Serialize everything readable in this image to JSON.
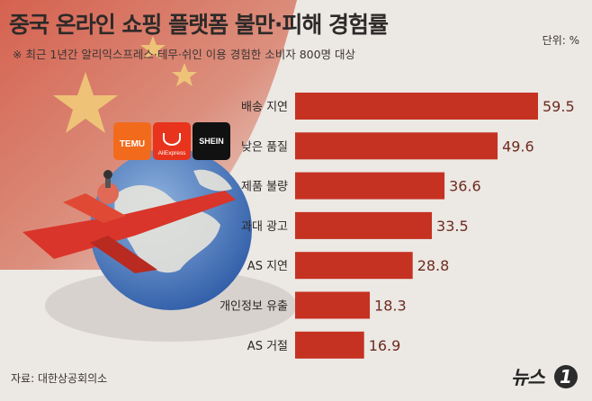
{
  "header": {
    "title": "중국 온라인 쇼핑 플랫폼 불만·피해 경험률",
    "subtitle": "※ 최근 1년간 알리익스프레스·테무·쉬인 이용 경험한 소비자 800명 대상",
    "unit": "단위: %"
  },
  "footer": {
    "source": "자료: 대한상공회의소",
    "brand": "뉴스",
    "brand_mark": "1"
  },
  "logos": {
    "temu": "TEMU",
    "aliexpress": "AliExpress",
    "shein": "SHEIN"
  },
  "colors": {
    "bar": "#c53222",
    "value_text": "#6e2b20",
    "flag_red": "#c8412b"
  },
  "chart_data": {
    "type": "bar",
    "orientation": "horizontal",
    "title": "중국 온라인 쇼핑 플랫폼 불만·피해 경험률",
    "categories": [
      "배송 지연",
      "낮은 품질",
      "제품 불량",
      "과대 광고",
      "AS 지연",
      "개인정보 유출",
      "AS 거절"
    ],
    "values": [
      59.5,
      49.6,
      36.6,
      33.5,
      28.8,
      18.3,
      16.9
    ],
    "value_labels": [
      "59.5",
      "49.6",
      "36.6",
      "33.5",
      "28.8",
      "18.3",
      "16.9"
    ],
    "xlim": [
      0,
      59.5
    ],
    "grid": false,
    "legend": "none"
  }
}
